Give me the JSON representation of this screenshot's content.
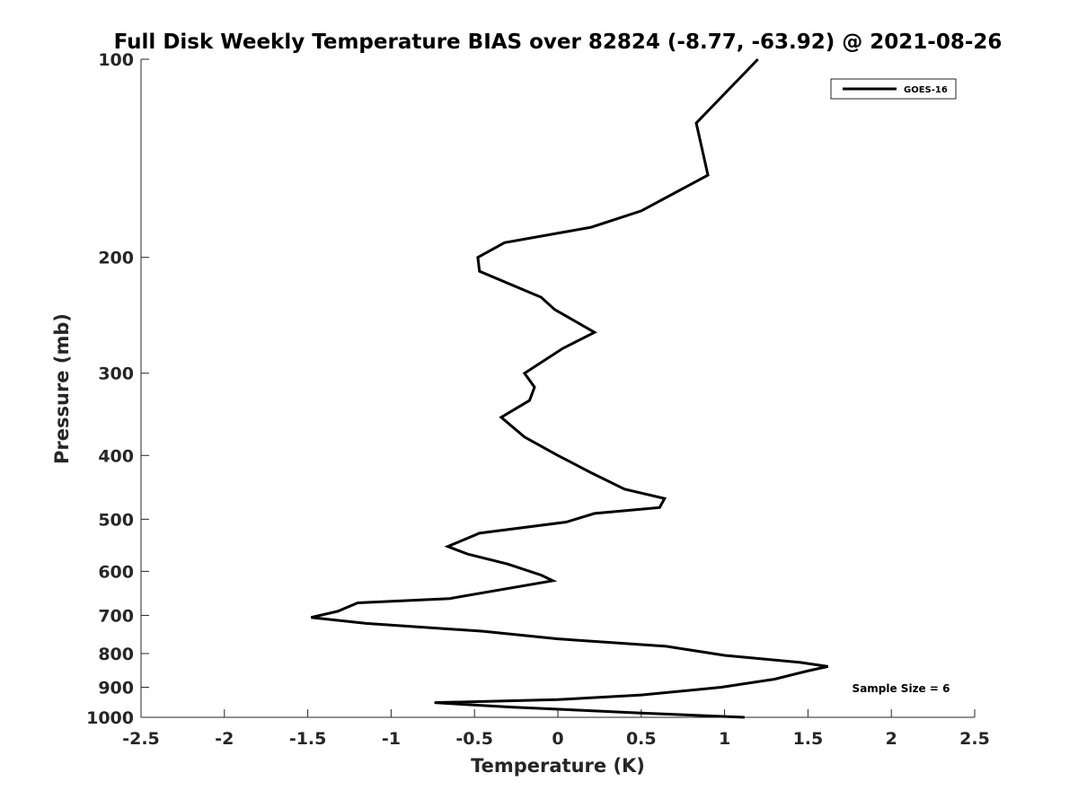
{
  "chart_data": {
    "type": "line",
    "title": "Full Disk Weekly Temperature BIAS over 82824 (-8.77, -63.92) @ 2021-08-26",
    "xlabel": "Temperature (K)",
    "ylabel": "Pressure (mb)",
    "xlim": [
      -2.5,
      2.5
    ],
    "ylim": [
      100,
      1000
    ],
    "y_scale": "log",
    "y_reversed": true,
    "grid": false,
    "legend_position": "top-right",
    "x_ticks": [
      -2.5,
      -2,
      -1.5,
      -1,
      -0.5,
      0,
      0.5,
      1,
      1.5,
      2,
      2.5
    ],
    "x_tick_labels": [
      "-2.5",
      "-2",
      "-1.5",
      "-1",
      "-0.5",
      "0",
      "0.5",
      "1",
      "1.5",
      "2",
      "2.5"
    ],
    "y_ticks": [
      100,
      200,
      300,
      400,
      500,
      600,
      700,
      800,
      900,
      1000
    ],
    "y_tick_labels": [
      "100",
      "200",
      "300",
      "400",
      "500",
      "600",
      "700",
      "800",
      "900",
      "1000"
    ],
    "series": [
      {
        "name": "GOES-16",
        "color": "#000000",
        "points": [
          [
            1.2,
            100
          ],
          [
            0.83,
            125
          ],
          [
            0.9,
            150
          ],
          [
            0.5,
            170
          ],
          [
            0.2,
            180
          ],
          [
            -0.32,
            190
          ],
          [
            -0.48,
            200
          ],
          [
            -0.47,
            210
          ],
          [
            -0.1,
            230
          ],
          [
            -0.02,
            240
          ],
          [
            0.22,
            260
          ],
          [
            0.03,
            275
          ],
          [
            -0.2,
            300
          ],
          [
            -0.14,
            315
          ],
          [
            -0.17,
            330
          ],
          [
            -0.34,
            350
          ],
          [
            -0.2,
            375
          ],
          [
            0.0,
            400
          ],
          [
            0.2,
            425
          ],
          [
            0.4,
            450
          ],
          [
            0.64,
            465
          ],
          [
            0.61,
            480
          ],
          [
            0.22,
            490
          ],
          [
            0.05,
            505
          ],
          [
            -0.47,
            525
          ],
          [
            -0.66,
            550
          ],
          [
            -0.54,
            565
          ],
          [
            -0.3,
            585
          ],
          [
            -0.1,
            608
          ],
          [
            -0.03,
            620
          ],
          [
            -0.65,
            660
          ],
          [
            -1.2,
            670
          ],
          [
            -1.32,
            690
          ],
          [
            -1.48,
            705
          ],
          [
            -1.15,
            720
          ],
          [
            -0.45,
            740
          ],
          [
            0.0,
            760
          ],
          [
            0.65,
            780
          ],
          [
            1.0,
            805
          ],
          [
            1.45,
            825
          ],
          [
            1.62,
            837
          ],
          [
            1.5,
            850
          ],
          [
            1.3,
            875
          ],
          [
            0.98,
            900
          ],
          [
            0.5,
            925
          ],
          [
            0.0,
            940
          ],
          [
            -0.74,
            950
          ],
          [
            -0.28,
            965
          ],
          [
            0.5,
            985
          ],
          [
            1.12,
            1000
          ]
        ]
      }
    ],
    "legend": [
      {
        "label": "GOES-16"
      }
    ],
    "annotations": [
      {
        "text": "Sample Size = 6"
      }
    ]
  }
}
